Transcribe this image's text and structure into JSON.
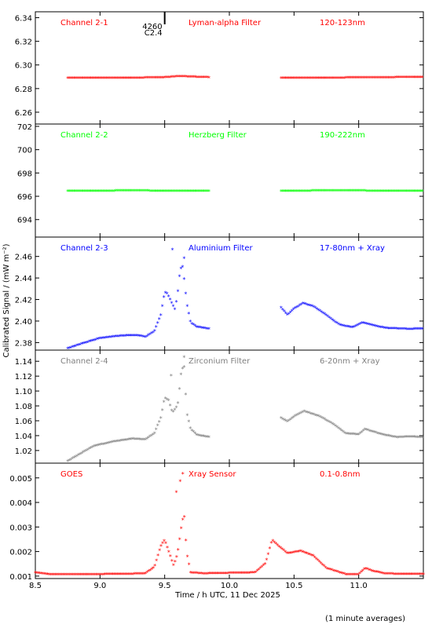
{
  "chart_data": {
    "type": "scatter",
    "title": "",
    "xlabel": "Time / h UTC, 11 Dec 2025",
    "ylabel": "Calibrated Signal / (mW m⁻²)",
    "footnote": "(1 minute averages)",
    "xlim": [
      8.5,
      11.5
    ],
    "xticks": [
      8.5,
      9.0,
      9.5,
      10.0,
      10.5,
      11.0
    ],
    "xtick_labels": [
      "8.5",
      "9.0",
      "9.5",
      "10.0",
      "10.5",
      "11.0"
    ],
    "flare_marker": {
      "x": 9.5,
      "id": "4260",
      "class": "C2.4"
    },
    "panels": [
      {
        "name": "Channel 2-1",
        "filter": "Lyman-alpha Filter",
        "band": "120-123nm",
        "color": "#ff0000",
        "ylim": [
          6.25,
          6.345
        ],
        "yticks": [
          6.26,
          6.28,
          6.3,
          6.32,
          6.34
        ],
        "ytick_labels": [
          "6.26",
          "6.28",
          "6.30",
          "6.32",
          "6.34"
        ],
        "segments": [
          [
            [
              8.75,
              6.2885
            ],
            [
              9.0,
              6.2885
            ],
            [
              9.25,
              6.2885
            ],
            [
              9.5,
              6.289
            ],
            [
              9.62,
              6.29
            ],
            [
              9.7,
              6.2895
            ],
            [
              9.85,
              6.289
            ]
          ],
          [
            [
              10.4,
              6.2885
            ],
            [
              10.7,
              6.2885
            ],
            [
              11.0,
              6.2888
            ],
            [
              11.25,
              6.289
            ],
            [
              11.5,
              6.2892
            ]
          ]
        ]
      },
      {
        "name": "Channel 2-2",
        "filter": "Herzberg Filter",
        "band": "190-222nm",
        "color": "#00ff00",
        "ylim": [
          692.5,
          702.2
        ],
        "yticks": [
          694,
          696,
          698,
          700,
          702
        ],
        "ytick_labels": [
          "694",
          "696",
          "698",
          "700",
          "702"
        ],
        "segments": [
          [
            [
              8.75,
              696.4
            ],
            [
              9.0,
              696.4
            ],
            [
              9.25,
              696.45
            ],
            [
              9.5,
              696.4
            ],
            [
              9.85,
              696.4
            ]
          ],
          [
            [
              10.4,
              696.4
            ],
            [
              10.9,
              696.45
            ],
            [
              11.2,
              696.4
            ],
            [
              11.5,
              696.4
            ]
          ]
        ]
      },
      {
        "name": "Channel 2-3",
        "filter": "Aluminium Filter",
        "band": "17-80nm + Xray",
        "color": "#0000ff",
        "ylim": [
          2.373,
          2.478
        ],
        "yticks": [
          2.38,
          2.4,
          2.42,
          2.44,
          2.46
        ],
        "ytick_labels": [
          "2.38",
          "2.40",
          "2.42",
          "2.44",
          "2.46"
        ],
        "segments": [
          [
            [
              8.75,
              2.374
            ],
            [
              8.85,
              2.378
            ],
            [
              9.0,
              2.3835
            ],
            [
              9.1,
              2.385
            ],
            [
              9.2,
              2.386
            ],
            [
              9.3,
              2.386
            ],
            [
              9.35,
              2.3845
            ],
            [
              9.42,
              2.39
            ],
            [
              9.47,
              2.405
            ],
            [
              9.5,
              2.426
            ],
            [
              9.52,
              2.425
            ],
            [
              9.56,
              2.415
            ],
            [
              9.58,
              2.41
            ],
            [
              9.6,
              2.425
            ],
            [
              9.62,
              2.448
            ],
            [
              9.64,
              2.45
            ],
            [
              9.67,
              2.416
            ],
            [
              9.7,
              2.398
            ],
            [
              9.75,
              2.394
            ],
            [
              9.85,
              2.392
            ]
          ],
          [
            [
              10.4,
              2.412
            ],
            [
              10.45,
              2.405
            ],
            [
              10.5,
              2.411
            ],
            [
              10.57,
              2.416
            ],
            [
              10.65,
              2.413
            ],
            [
              10.75,
              2.405
            ],
            [
              10.85,
              2.396
            ],
            [
              10.95,
              2.3935
            ],
            [
              11.03,
              2.398
            ],
            [
              11.1,
              2.396
            ],
            [
              11.2,
              2.393
            ],
            [
              11.3,
              2.3925
            ],
            [
              11.4,
              2.392
            ],
            [
              11.5,
              2.3925
            ]
          ]
        ],
        "spikes": [
          [
            9.65,
            2.458
          ],
          [
            9.56,
            2.466
          ]
        ]
      },
      {
        "name": "Channel 2-4",
        "filter": "Zirconium Filter",
        "band": "6-20nm + Xray",
        "color": "#808080",
        "ylim": [
          1.003,
          1.155
        ],
        "yticks": [
          1.02,
          1.04,
          1.06,
          1.08,
          1.1,
          1.12,
          1.14
        ],
        "ytick_labels": [
          "1.02",
          "1.04",
          "1.06",
          "1.08",
          "1.10",
          "1.12",
          "1.14"
        ],
        "segments": [
          [
            [
              8.75,
              1.005
            ],
            [
              8.85,
              1.015
            ],
            [
              8.95,
              1.025
            ],
            [
              9.1,
              1.031
            ],
            [
              9.25,
              1.035
            ],
            [
              9.35,
              1.034
            ],
            [
              9.42,
              1.042
            ],
            [
              9.47,
              1.063
            ],
            [
              9.5,
              1.09
            ],
            [
              9.53,
              1.087
            ],
            [
              9.56,
              1.07
            ],
            [
              9.6,
              1.08
            ],
            [
              9.63,
              1.128
            ],
            [
              9.65,
              1.132
            ],
            [
              9.67,
              1.07
            ],
            [
              9.7,
              1.048
            ],
            [
              9.75,
              1.04
            ],
            [
              9.85,
              1.037
            ]
          ],
          [
            [
              10.4,
              1.063
            ],
            [
              10.45,
              1.058
            ],
            [
              10.5,
              1.065
            ],
            [
              10.58,
              1.072
            ],
            [
              10.7,
              1.065
            ],
            [
              10.8,
              1.055
            ],
            [
              10.9,
              1.042
            ],
            [
              11.0,
              1.041
            ],
            [
              11.05,
              1.048
            ],
            [
              11.1,
              1.045
            ],
            [
              11.2,
              1.04
            ],
            [
              11.3,
              1.037
            ],
            [
              11.4,
              1.038
            ],
            [
              11.5,
              1.037
            ]
          ]
        ],
        "spikes": [
          [
            9.65,
            1.145
          ],
          [
            9.55,
            1.12
          ]
        ]
      },
      {
        "name": "GOES",
        "filter": "Xray Sensor",
        "band": "0.1-0.8nm",
        "color": "#ff0000",
        "ylim": [
          0.0009,
          0.0056
        ],
        "yticks": [
          0.001,
          0.002,
          0.003,
          0.004,
          0.005
        ],
        "ytick_labels": [
          "0.001",
          "0.002",
          "0.003",
          "0.004",
          "0.005"
        ],
        "segments": [
          [
            [
              8.5,
              0.00112
            ],
            [
              8.6,
              0.00105
            ],
            [
              8.8,
              0.00104
            ],
            [
              9.0,
              0.00105
            ],
            [
              9.2,
              0.00106
            ],
            [
              9.35,
              0.00108
            ],
            [
              9.42,
              0.00135
            ],
            [
              9.47,
              0.0022
            ],
            [
              9.5,
              0.00245
            ],
            [
              9.53,
              0.002
            ],
            [
              9.57,
              0.0014
            ],
            [
              9.6,
              0.0019
            ],
            [
              9.63,
              0.003
            ],
            [
              9.65,
              0.00356
            ],
            [
              9.67,
              0.00195
            ],
            [
              9.7,
              0.00112
            ],
            [
              9.8,
              0.00108
            ],
            [
              10.0,
              0.0011
            ],
            [
              10.2,
              0.00112
            ],
            [
              10.28,
              0.0015
            ],
            [
              10.33,
              0.00245
            ],
            [
              10.38,
              0.0022
            ],
            [
              10.45,
              0.0019
            ],
            [
              10.55,
              0.002
            ],
            [
              10.65,
              0.0018
            ],
            [
              10.75,
              0.0013
            ],
            [
              10.9,
              0.00105
            ],
            [
              11.0,
              0.00105
            ],
            [
              11.05,
              0.0013
            ],
            [
              11.1,
              0.0012
            ],
            [
              11.2,
              0.00107
            ],
            [
              11.5,
              0.00106
            ]
          ]
        ],
        "spikes": [
          [
            9.64,
            0.00515
          ],
          [
            9.62,
            0.00485
          ],
          [
            9.59,
            0.0044
          ]
        ]
      }
    ]
  }
}
